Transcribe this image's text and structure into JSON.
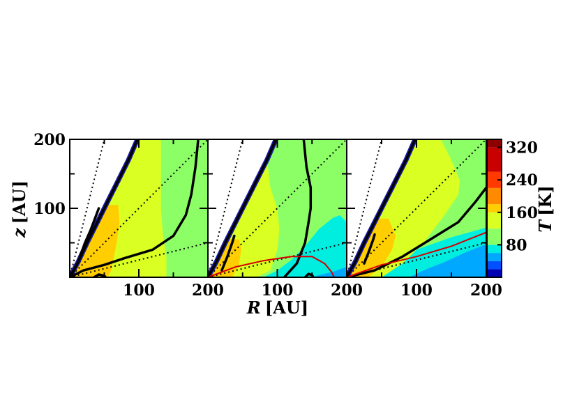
{
  "chart_data": {
    "type": "heatmap",
    "title": "",
    "xlabel": "R [AU]",
    "ylabel": "z [AU]",
    "colorbar_label": "T [K]",
    "xlim": [
      0,
      200
    ],
    "ylim": [
      0,
      200
    ],
    "x_ticks": [
      100,
      200
    ],
    "y_ticks": [
      100,
      200
    ],
    "colorbar_ticks": [
      80,
      160,
      240,
      320
    ],
    "colorbar_range": [
      0,
      340
    ],
    "levels": [
      {
        "from": 0,
        "to": 20,
        "color": "#0000b4"
      },
      {
        "from": 20,
        "to": 40,
        "color": "#0050ff"
      },
      {
        "from": 40,
        "to": 60,
        "color": "#00a8ff"
      },
      {
        "from": 60,
        "to": 80,
        "color": "#00eee0"
      },
      {
        "from": 80,
        "to": 120,
        "color": "#8cff66"
      },
      {
        "from": 120,
        "to": 160,
        "color": "#daff22"
      },
      {
        "from": 160,
        "to": 180,
        "color": "#ffce00"
      },
      {
        "from": 180,
        "to": 220,
        "color": "#ff8a00"
      },
      {
        "from": 220,
        "to": 260,
        "color": "#ff3a00"
      },
      {
        "from": 260,
        "to": 320,
        "color": "#c80000"
      },
      {
        "from": 320,
        "to": 340,
        "color": "#8c0000"
      }
    ],
    "panels": [
      {
        "regions": [
          {
            "color": "#8cff66",
            "points": [
              [
                0,
                0
              ],
              [
                200,
                0
              ],
              [
                200,
                200
              ],
              [
                0,
                200
              ]
            ]
          },
          {
            "color": "#daff22",
            "points": [
              [
                0,
                0
              ],
              [
                120,
                0
              ],
              [
                140,
                0
              ],
              [
                140,
                30
              ],
              [
                135,
                60
              ],
              [
                132,
                100
              ],
              [
                132,
                150
              ],
              [
                132,
                200
              ],
              [
                10,
                200
              ],
              [
                0,
                200
              ]
            ]
          },
          {
            "color": "#ffce00",
            "points": [
              [
                0,
                0
              ],
              [
                55,
                0
              ],
              [
                60,
                10
              ],
              [
                68,
                50
              ],
              [
                72,
                80
              ],
              [
                70,
                105
              ],
              [
                40,
                105
              ],
              [
                20,
                60
              ],
              [
                0,
                0
              ]
            ]
          },
          {
            "color": "#ffffff",
            "points": [
              [
                0,
                0
              ],
              [
                0,
                200
              ],
              [
                98,
                200
              ],
              [
                85,
                170
              ],
              [
                70,
                140
              ],
              [
                55,
                110
              ],
              [
                40,
                80
              ],
              [
                25,
                50
              ],
              [
                0,
                0
              ]
            ]
          }
        ],
        "thick_lines": [
          {
            "points": [
              [
                0,
                0
              ],
              [
                12,
                22
              ],
              [
                25,
                50
              ],
              [
                40,
                80
              ],
              [
                55,
                110
              ],
              [
                70,
                140
              ],
              [
                85,
                170
              ],
              [
                98,
                200
              ]
            ]
          },
          {
            "points": [
              [
                0,
                0
              ],
              [
                5,
                8
              ],
              [
                12,
                22
              ],
              [
                22,
                50
              ],
              [
                30,
                68
              ],
              [
                42,
                100
              ]
            ]
          },
          {
            "points": [
              [
                0,
                0
              ],
              [
                20,
                10
              ],
              [
                50,
                18
              ],
              [
                80,
                28
              ],
              [
                120,
                40
              ],
              [
                150,
                60
              ],
              [
                168,
                90
              ],
              [
                176,
                120
              ],
              [
                182,
                160
              ],
              [
                186,
                200
              ]
            ]
          },
          {
            "points": [
              [
                35,
                0
              ],
              [
                42,
                4
              ],
              [
                50,
                2
              ],
              [
                52,
                0
              ]
            ]
          }
        ],
        "red_lines": []
      },
      {
        "regions": [
          {
            "color": "#8cff66",
            "points": [
              [
                0,
                0
              ],
              [
                200,
                0
              ],
              [
                200,
                200
              ],
              [
                0,
                200
              ]
            ]
          },
          {
            "color": "#00eee0",
            "points": [
              [
                80,
                0
              ],
              [
                200,
                0
              ],
              [
                200,
                80
              ],
              [
                190,
                90
              ],
              [
                180,
                86
              ],
              [
                160,
                70
              ],
              [
                140,
                45
              ],
              [
                120,
                25
              ],
              [
                100,
                10
              ],
              [
                80,
                0
              ]
            ]
          },
          {
            "color": "#00a8ff",
            "points": [
              [
                150,
                0
              ],
              [
                200,
                0
              ],
              [
                200,
                15
              ],
              [
                180,
                8
              ],
              [
                160,
                3
              ],
              [
                150,
                0
              ]
            ]
          },
          {
            "color": "#daff22",
            "points": [
              [
                0,
                0
              ],
              [
                70,
                0
              ],
              [
                90,
                10
              ],
              [
                100,
                40
              ],
              [
                103,
                70
              ],
              [
                100,
                100
              ],
              [
                90,
                130
              ],
              [
                85,
                170
              ],
              [
                85,
                200
              ],
              [
                0,
                200
              ]
            ]
          },
          {
            "color": "#ffce00",
            "points": [
              [
                0,
                0
              ],
              [
                35,
                0
              ],
              [
                45,
                20
              ],
              [
                48,
                40
              ],
              [
                45,
                55
              ],
              [
                30,
                55
              ],
              [
                20,
                40
              ],
              [
                0,
                0
              ]
            ]
          },
          {
            "color": "#ffffff",
            "points": [
              [
                0,
                0
              ],
              [
                0,
                200
              ],
              [
                98,
                200
              ],
              [
                85,
                170
              ],
              [
                70,
                140
              ],
              [
                55,
                110
              ],
              [
                40,
                80
              ],
              [
                25,
                50
              ],
              [
                0,
                0
              ]
            ]
          }
        ],
        "thick_lines": [
          {
            "points": [
              [
                0,
                0
              ],
              [
                12,
                22
              ],
              [
                25,
                50
              ],
              [
                40,
                80
              ],
              [
                55,
                110
              ],
              [
                70,
                140
              ],
              [
                85,
                170
              ],
              [
                98,
                200
              ]
            ]
          },
          {
            "points": [
              [
                20,
                10
              ],
              [
                28,
                30
              ],
              [
                35,
                50
              ],
              [
                38,
                60
              ]
            ]
          },
          {
            "points": [
              [
                110,
                0
              ],
              [
                128,
                20
              ],
              [
                140,
                50
              ],
              [
                145,
                80
              ],
              [
                148,
                100
              ],
              [
                148,
                130
              ],
              [
                142,
                160
              ],
              [
                138,
                200
              ]
            ]
          },
          {
            "points": [
              [
                140,
                0
              ],
              [
                145,
                5
              ],
              [
                150,
                3
              ],
              [
                152,
                0
              ]
            ]
          }
        ],
        "red_lines": [
          {
            "points": [
              [
                0,
                0
              ],
              [
                40,
                15
              ],
              [
                80,
                24
              ],
              [
                120,
                30
              ],
              [
                150,
                30
              ],
              [
                168,
                20
              ],
              [
                178,
                8
              ],
              [
                182,
                0
              ]
            ]
          }
        ]
      },
      {
        "regions": [
          {
            "color": "#8cff66",
            "points": [
              [
                0,
                0
              ],
              [
                200,
                0
              ],
              [
                200,
                200
              ],
              [
                0,
                200
              ]
            ]
          },
          {
            "color": "#00eee0",
            "points": [
              [
                40,
                0
              ],
              [
                200,
                0
              ],
              [
                200,
                72
              ],
              [
                150,
                58
              ],
              [
                100,
                40
              ],
              [
                70,
                20
              ],
              [
                50,
                8
              ],
              [
                40,
                0
              ]
            ]
          },
          {
            "color": "#00a8ff",
            "points": [
              [
                90,
                0
              ],
              [
                200,
                0
              ],
              [
                200,
                48
              ],
              [
                170,
                36
              ],
              [
                140,
                22
              ],
              [
                110,
                10
              ],
              [
                90,
                0
              ]
            ]
          },
          {
            "color": "#daff22",
            "points": [
              [
                0,
                0
              ],
              [
                50,
                0
              ],
              [
                80,
                20
              ],
              [
                110,
                50
              ],
              [
                140,
                90
              ],
              [
                160,
                120
              ],
              [
                162,
                140
              ],
              [
                150,
                170
              ],
              [
                135,
                200
              ],
              [
                0,
                200
              ]
            ]
          },
          {
            "color": "#ffce00",
            "points": [
              [
                0,
                0
              ],
              [
                30,
                0
              ],
              [
                50,
                15
              ],
              [
                65,
                40
              ],
              [
                70,
                60
              ],
              [
                60,
                85
              ],
              [
                40,
                85
              ],
              [
                20,
                45
              ],
              [
                0,
                0
              ]
            ]
          },
          {
            "color": "#ffffff",
            "points": [
              [
                0,
                0
              ],
              [
                0,
                200
              ],
              [
                98,
                200
              ],
              [
                85,
                170
              ],
              [
                70,
                140
              ],
              [
                55,
                110
              ],
              [
                40,
                80
              ],
              [
                25,
                50
              ],
              [
                0,
                0
              ]
            ]
          }
        ],
        "thick_lines": [
          {
            "points": [
              [
                0,
                0
              ],
              [
                12,
                22
              ],
              [
                25,
                50
              ],
              [
                40,
                80
              ],
              [
                55,
                110
              ],
              [
                70,
                140
              ],
              [
                85,
                170
              ],
              [
                98,
                200
              ]
            ]
          },
          {
            "points": [
              [
                25,
                20
              ],
              [
                32,
                38
              ],
              [
                38,
                55
              ],
              [
                40,
                62
              ]
            ]
          },
          {
            "points": [
              [
                0,
                0
              ],
              [
                40,
                10
              ],
              [
                80,
                30
              ],
              [
                120,
                55
              ],
              [
                160,
                80
              ],
              [
                185,
                110
              ],
              [
                200,
                130
              ]
            ]
          }
        ],
        "red_lines": [
          {
            "points": [
              [
                0,
                0
              ],
              [
                50,
                18
              ],
              [
                100,
                30
              ],
              [
                150,
                45
              ],
              [
                200,
                65
              ]
            ]
          }
        ]
      }
    ],
    "dotted_lines": [
      {
        "slope": 4.0
      },
      {
        "slope": 1.0
      },
      {
        "slope": 0.25
      }
    ]
  }
}
